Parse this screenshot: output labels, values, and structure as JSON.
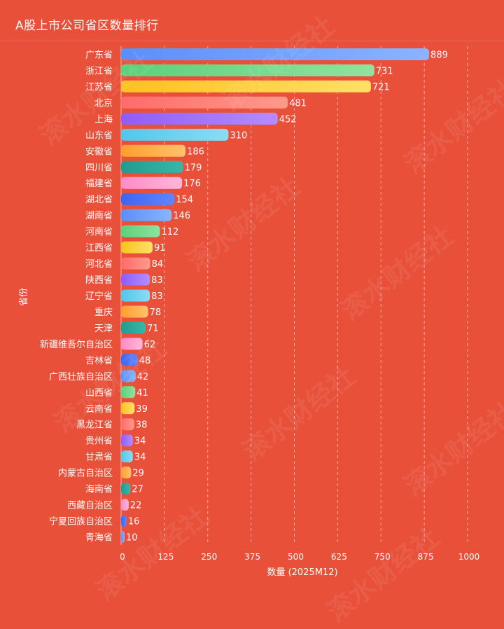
{
  "title": "A股上市公司省区数量排行",
  "colors": {
    "background": "#e8503a",
    "text": "#ffffff",
    "palette": [
      [
        "#5b8ff9",
        "#8ab4ff"
      ],
      [
        "#5ad17a",
        "#8fe39f"
      ],
      [
        "#fcc11f",
        "#ffe066"
      ],
      [
        "#ff6b6b",
        "#ff9a8a"
      ],
      [
        "#8f5cf7",
        "#b48cff"
      ],
      [
        "#53c6ea",
        "#8adcf5"
      ],
      [
        "#ff9d2e",
        "#ffc26b"
      ],
      [
        "#1f9c8f",
        "#38b7a7"
      ],
      [
        "#ff8cc6",
        "#ffb6d9"
      ],
      [
        "#3d64f0",
        "#5e86ff"
      ]
    ]
  },
  "chart_data": {
    "type": "bar",
    "orientation": "horizontal",
    "title": "A股上市公司省区数量排行",
    "xlabel": "数量 (2025M12)",
    "ylabel": "省份",
    "xlim": [
      0,
      1000
    ],
    "xticks": [
      "0",
      "125",
      "250",
      "375",
      "500",
      "625",
      "750",
      "875",
      "1000"
    ],
    "grid": "vertical-dashed",
    "data_labels": true,
    "categories": [
      "广东省",
      "浙江省",
      "江苏省",
      "北京",
      "上海",
      "山东省",
      "安徽省",
      "四川省",
      "福建省",
      "湖北省",
      "湖南省",
      "河南省",
      "江西省",
      "河北省",
      "陕西省",
      "辽宁省",
      "重庆",
      "天津",
      "新疆维吾尔自治区",
      "吉林省",
      "广西壮族自治区",
      "山西省",
      "云南省",
      "黑龙江省",
      "贵州省",
      "甘肃省",
      "内蒙古自治区",
      "海南省",
      "西藏自治区",
      "宁夏回族自治区",
      "青海省"
    ],
    "values": [
      889,
      731,
      721,
      481,
      452,
      310,
      186,
      179,
      176,
      154,
      146,
      112,
      91,
      84,
      83,
      83,
      78,
      71,
      62,
      48,
      42,
      41,
      39,
      38,
      34,
      34,
      29,
      27,
      22,
      16,
      10
    ]
  },
  "watermark": "滚水财经社"
}
